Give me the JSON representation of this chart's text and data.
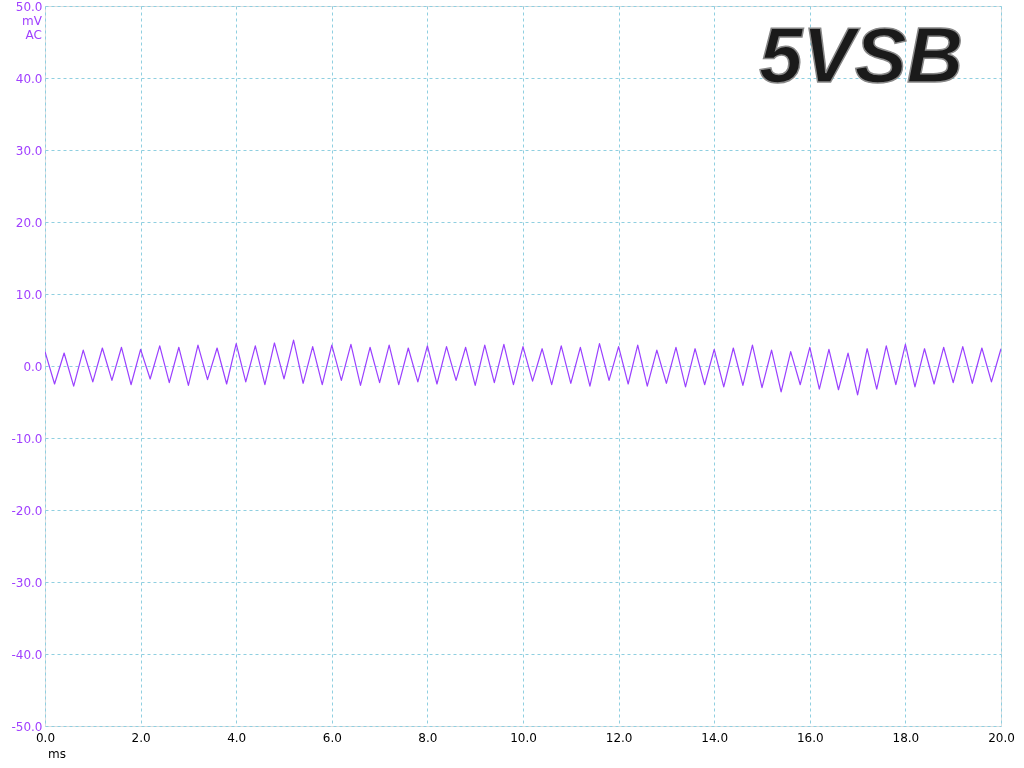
{
  "chart_data": {
    "type": "line",
    "title": "5VSB",
    "xlabel": "ms",
    "ylabel": "mV AC",
    "x": [
      0,
      0.2,
      0.4,
      0.6,
      0.8,
      1.0,
      1.2,
      1.4,
      1.6,
      1.8,
      2.0,
      2.2,
      2.4,
      2.6,
      2.8,
      3.0,
      3.2,
      3.4,
      3.6,
      3.8,
      4.0,
      4.2,
      4.4,
      4.6,
      4.8,
      5.0,
      5.2,
      5.4,
      5.6,
      5.8,
      6.0,
      6.2,
      6.4,
      6.6,
      6.8,
      7.0,
      7.2,
      7.4,
      7.6,
      7.8,
      8.0,
      8.2,
      8.4,
      8.6,
      8.8,
      9.0,
      9.2,
      9.4,
      9.6,
      9.8,
      10.0,
      10.2,
      10.4,
      10.6,
      10.8,
      11.0,
      11.2,
      11.4,
      11.6,
      11.8,
      12.0,
      12.2,
      12.4,
      12.6,
      12.8,
      13.0,
      13.2,
      13.4,
      13.6,
      13.8,
      14.0,
      14.2,
      14.4,
      14.6,
      14.8,
      15.0,
      15.2,
      15.4,
      15.6,
      15.8,
      16.0,
      16.2,
      16.4,
      16.6,
      16.8,
      17.0,
      17.2,
      17.4,
      17.6,
      17.8,
      18.0,
      18.2,
      18.4,
      18.6,
      18.8,
      19.0,
      19.2,
      19.4,
      19.6,
      19.8,
      20.0
    ],
    "series": [
      {
        "color": "#9a40ff",
        "values": [
          2.0,
          -2.5,
          1.8,
          -2.8,
          2.2,
          -2.2,
          2.5,
          -2.0,
          2.6,
          -2.6,
          2.3,
          -1.8,
          2.8,
          -2.3,
          2.6,
          -2.7,
          2.9,
          -1.9,
          2.5,
          -2.5,
          3.1,
          -2.2,
          2.8,
          -2.6,
          3.2,
          -1.8,
          3.6,
          -2.4,
          2.7,
          -2.6,
          2.9,
          -2.0,
          3.0,
          -2.7,
          2.6,
          -2.3,
          2.9,
          -2.6,
          2.5,
          -2.2,
          2.8,
          -2.5,
          2.7,
          -2.0,
          2.6,
          -2.7,
          2.9,
          -2.3,
          3.0,
          -2.6,
          2.7,
          -2.1,
          2.4,
          -2.6,
          2.8,
          -2.4,
          2.6,
          -2.8,
          3.1,
          -2.0,
          2.7,
          -2.5,
          2.9,
          -2.8,
          2.2,
          -2.4,
          2.6,
          -2.9,
          2.4,
          -2.6,
          2.3,
          -2.9,
          2.5,
          -2.7,
          2.9,
          -3.0,
          2.2,
          -3.6,
          2.0,
          -2.6,
          2.6,
          -3.2,
          2.3,
          -3.3,
          1.8,
          -4.0,
          2.4,
          -3.2,
          2.8,
          -2.6,
          3.0,
          -2.9,
          2.4,
          -2.5,
          2.6,
          -2.3,
          2.7,
          -2.4,
          2.5,
          -2.2,
          2.4
        ]
      }
    ],
    "xlim": [
      0,
      20
    ],
    "xticks": [
      {
        "value": 0,
        "label": "0.0"
      },
      {
        "value": 2,
        "label": "2.0"
      },
      {
        "value": 4,
        "label": "4.0"
      },
      {
        "value": 6,
        "label": "6.0"
      },
      {
        "value": 8,
        "label": "8.0"
      },
      {
        "value": 10,
        "label": "10.0"
      },
      {
        "value": 12,
        "label": "12.0"
      },
      {
        "value": 14,
        "label": "14.0"
      },
      {
        "value": 16,
        "label": "16.0"
      },
      {
        "value": 18,
        "label": "18.0"
      },
      {
        "value": 20,
        "label": "20.0"
      }
    ],
    "ylim": [
      -50,
      50
    ],
    "yticks": [
      {
        "value": -50,
        "label": "-50.0"
      },
      {
        "value": -40,
        "label": "-40.0"
      },
      {
        "value": -30,
        "label": "-30.0"
      },
      {
        "value": -20,
        "label": "-20.0"
      },
      {
        "value": -10,
        "label": "-10.0"
      },
      {
        "value": 0,
        "label": "0.0"
      },
      {
        "value": 10,
        "label": "10.0"
      },
      {
        "value": 20,
        "label": "20.0"
      },
      {
        "value": 30,
        "label": "30.0"
      },
      {
        "value": 40,
        "label": "40.0"
      },
      {
        "value": 50,
        "label": "50.0"
      }
    ],
    "grid": true,
    "marker": "none",
    "line_style": "solid"
  }
}
